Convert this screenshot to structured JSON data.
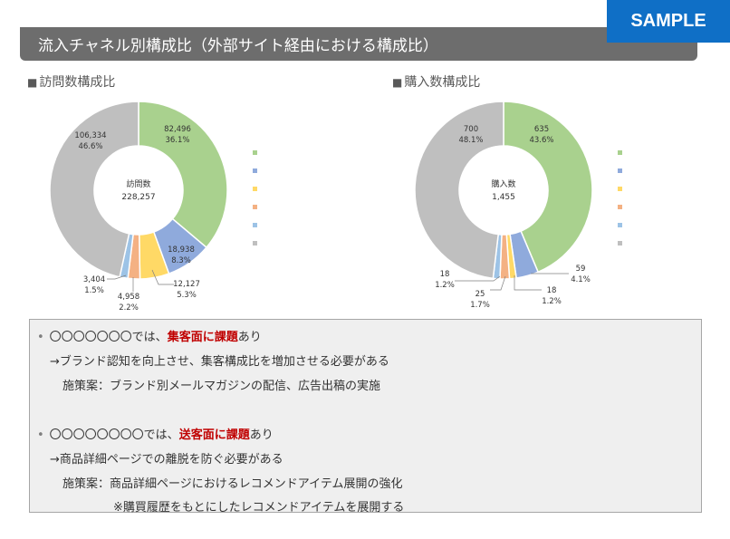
{
  "header": {
    "title": "流入チャネル別構成比（外部サイト経由における構成比）",
    "badge": "SAMPLE"
  },
  "sections": {
    "visits_label": "訪問数構成比",
    "purchases_label": "購入数構成比"
  },
  "colors": {
    "green": "#a9d18e",
    "blue": "#8faadc",
    "yellow": "#ffd966",
    "orange": "#f4b183",
    "lightblue": "#9dc3e6",
    "gray": "#bfbfbf",
    "header": "#6d6d6d",
    "badge": "#0f6fc6",
    "highlight": "#c00000"
  },
  "chart_data": [
    {
      "type": "pie",
      "center_label": "訪問数",
      "center_value": "228,257",
      "slices": [
        {
          "value": 82496,
          "value_label": "82,496",
          "pct": "36.1%",
          "color": "#a9d18e"
        },
        {
          "value": 18938,
          "value_label": "18,938",
          "pct": "8.3%",
          "color": "#8faadc"
        },
        {
          "value": 12127,
          "value_label": "12,127",
          "pct": "5.3%",
          "color": "#ffd966"
        },
        {
          "value": 4958,
          "value_label": "4,958",
          "pct": "2.2%",
          "color": "#f4b183"
        },
        {
          "value": 3404,
          "value_label": "3,404",
          "pct": "1.5%",
          "color": "#9dc3e6"
        },
        {
          "value": 106334,
          "value_label": "106,334",
          "pct": "46.6%",
          "color": "#bfbfbf"
        }
      ],
      "legend_colors": [
        "#a9d18e",
        "#8faadc",
        "#ffd966",
        "#f4b183",
        "#9dc3e6",
        "#bfbfbf"
      ]
    },
    {
      "type": "pie",
      "center_label": "購入数",
      "center_value": "1,455",
      "slices": [
        {
          "value": 635,
          "value_label": "635",
          "pct": "43.6%",
          "color": "#a9d18e"
        },
        {
          "value": 59,
          "value_label": "59",
          "pct": "4.1%",
          "color": "#8faadc"
        },
        {
          "value": 18,
          "value_label": "18",
          "pct": "1.2%",
          "color": "#ffd966"
        },
        {
          "value": 25,
          "value_label": "25",
          "pct": "1.7%",
          "color": "#f4b183"
        },
        {
          "value": 18,
          "value_label": "18",
          "pct": "1.2%",
          "color": "#9dc3e6"
        },
        {
          "value": 700,
          "value_label": "700",
          "pct": "48.1%",
          "color": "#bfbfbf"
        }
      ],
      "legend_colors": [
        "#a9d18e",
        "#8faadc",
        "#ffd966",
        "#f4b183",
        "#9dc3e6",
        "#bfbfbf"
      ]
    }
  ],
  "notes": {
    "line1_pre": "〇〇〇〇〇〇〇では、",
    "line1_hl": "集客面に課題",
    "line1_post": "あり",
    "line2": "→ブランド認知を向上させ、集客構成比を増加させる必要がある",
    "line3": "施策案：ブランド別メールマガジンの配信、広告出稿の実施",
    "line4_pre": "〇〇〇〇〇〇〇〇では、",
    "line4_hl": "送客面に課題",
    "line4_post": "あり",
    "line5": "→商品詳細ページでの離脱を防ぐ必要がある",
    "line6": "施策案：商品詳細ページにおけるレコメンドアイテム展開の強化",
    "line7": "※購買履歴をもとにしたレコメンドアイテムを展開する",
    "bullet": "•"
  }
}
